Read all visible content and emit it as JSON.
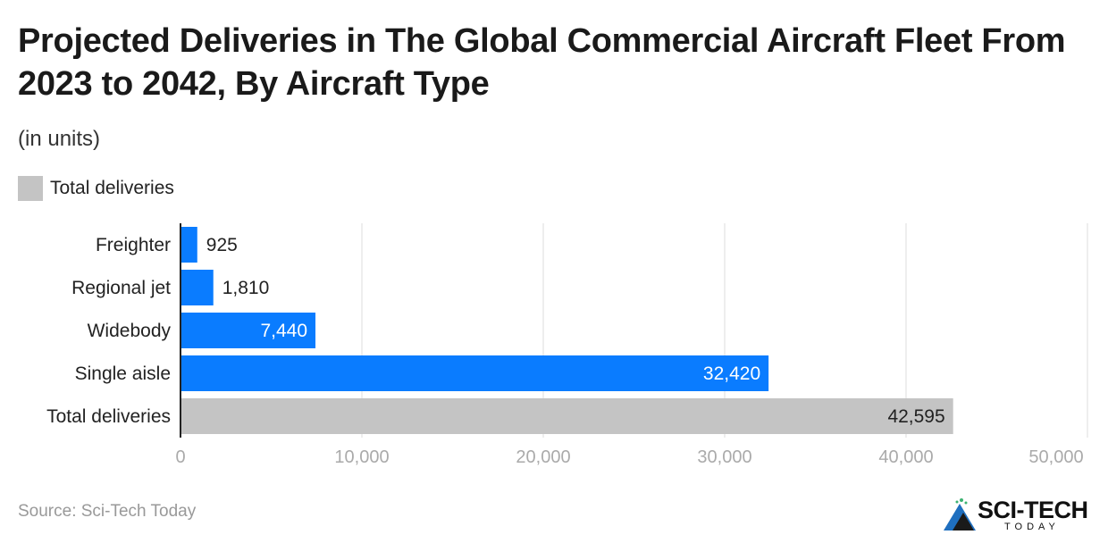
{
  "header": {
    "title": "Projected Deliveries in The Global Commercial Aircraft Fleet From 2023 to 2042, By Aircraft Type",
    "subtitle": "(in units)"
  },
  "legend": {
    "label": "Total deliveries",
    "color": "#c4c4c4"
  },
  "footer": {
    "source": "Source: Sci-Tech Today",
    "logo_text": "SCI-TECH",
    "logo_sub": "TODAY"
  },
  "colors": {
    "bar": "#0a7cff",
    "total_bar": "#c4c4c4",
    "grid": "#dddddd",
    "axis": "#222222"
  },
  "chart_data": {
    "type": "bar",
    "orientation": "horizontal",
    "categories": [
      "Freighter",
      "Regional jet",
      "Widebody",
      "Single aisle",
      "Total deliveries"
    ],
    "values": [
      925,
      1810,
      7440,
      32420,
      42595
    ],
    "value_labels": [
      "925",
      "1,810",
      "7,440",
      "32,420",
      "42,595"
    ],
    "xlim": [
      0,
      50000
    ],
    "xticks": [
      0,
      10000,
      20000,
      30000,
      40000,
      50000
    ],
    "xtick_labels": [
      "0",
      "10,000",
      "20,000",
      "30,000",
      "40,000",
      "50,000"
    ],
    "grid": true,
    "legend_position": "top-left"
  }
}
